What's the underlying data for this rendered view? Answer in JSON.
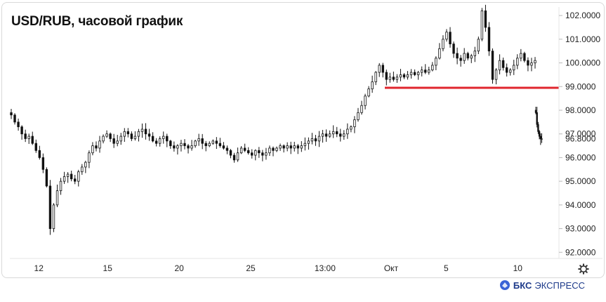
{
  "title": "USD/RUB, часовой график",
  "brand": {
    "bold": "БКС",
    "rest": "ЭКСПРЕСС"
  },
  "icons": {
    "settings": "gear-icon",
    "logo": "bks-logo-icon"
  },
  "colors": {
    "support_line": "#e0262e",
    "candles": "#111111",
    "axis_text": "#222222",
    "brand": "#1d3a8a"
  },
  "chart_data": {
    "type": "candlestick",
    "title": "USD/RUB, часовой график",
    "y_ticks": [
      "92.0000",
      "93.0000",
      "94.0000",
      "95.0000",
      "96.0000",
      "97.0000",
      "98.0000",
      "99.0000",
      "100.0000",
      "101.0000",
      "102.0000"
    ],
    "y_range": [
      91.8,
      102.3
    ],
    "last_value_label": "96.8000",
    "x_ticks": [
      "12",
      "15",
      "20",
      "25",
      "13:00",
      "Окт",
      "5",
      "10"
    ],
    "support_level": 98.95,
    "grid": false,
    "series": [
      {
        "values": [
          97.8,
          97.5,
          97.3,
          97.0,
          96.8,
          96.9,
          96.6,
          96.3,
          96.0,
          95.5,
          94.8,
          93.0,
          94.0,
          94.6,
          95.0,
          95.2,
          95.3,
          95.1,
          95.0,
          95.4,
          95.6,
          95.8,
          96.2,
          96.5,
          96.4,
          96.7,
          96.9,
          97.0,
          96.8,
          96.6,
          96.7,
          96.9,
          97.1,
          97.0,
          96.8,
          96.9,
          97.1,
          97.2,
          97.0,
          96.9,
          96.7,
          96.6,
          96.8,
          96.9,
          96.7,
          96.5,
          96.4,
          96.5,
          96.6,
          96.5,
          96.4,
          96.5,
          96.7,
          96.8,
          96.6,
          96.5,
          96.6,
          96.7,
          96.6,
          96.5,
          96.4,
          96.3,
          96.1,
          95.9,
          96.2,
          96.4,
          96.3,
          96.2,
          96.1,
          96.3,
          96.2,
          96.1,
          96.2,
          96.4,
          96.3,
          96.4,
          96.5,
          96.4,
          96.5,
          96.4,
          96.5,
          96.4,
          96.5,
          96.6,
          96.7,
          96.8,
          96.7,
          96.9,
          97.0,
          96.9,
          97.0,
          97.1,
          97.0,
          96.9,
          97.0,
          97.2,
          97.3,
          97.6,
          97.9,
          98.2,
          98.6,
          98.9,
          99.2,
          99.6,
          99.9,
          99.6,
          99.3,
          99.4,
          99.3,
          99.4,
          99.5,
          99.4,
          99.5,
          99.6,
          99.5,
          99.6,
          99.7,
          99.6,
          99.7,
          99.9,
          100.2,
          100.6,
          101.0,
          101.3,
          100.8,
          100.4,
          100.2,
          100.1,
          100.4,
          100.2,
          100.3,
          100.5,
          101.0,
          102.2,
          101.5,
          100.5,
          99.3,
          99.7,
          100.1,
          99.8,
          99.6,
          99.7,
          99.9,
          100.2,
          100.4,
          100.1,
          99.9,
          100.0,
          100.1
        ]
      },
      {
        "values": [
          97.9,
          97.4,
          97.1,
          96.9,
          96.8,
          96.8
        ]
      }
    ]
  }
}
